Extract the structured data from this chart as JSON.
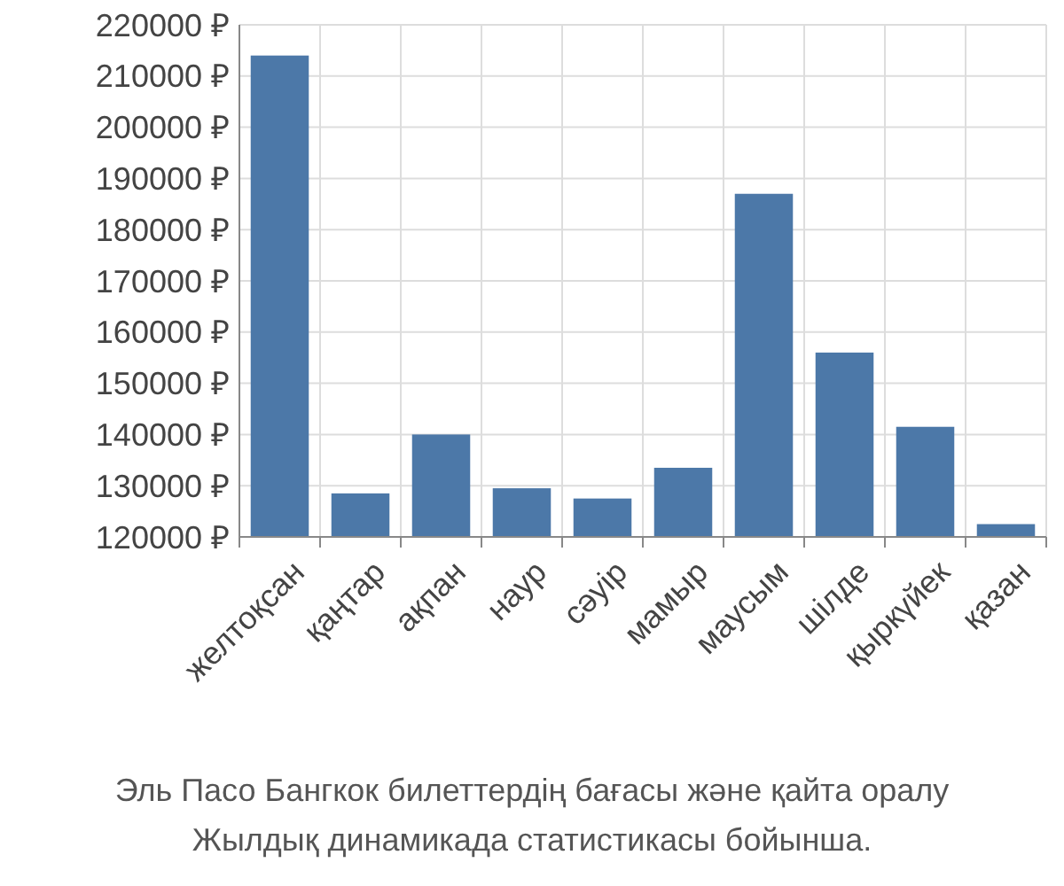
{
  "chart_data": {
    "type": "bar",
    "categories": [
      "желтоқсан",
      "қаңтар",
      "ақпан",
      "наур",
      "сәуір",
      "мамыр",
      "маусым",
      "шілде",
      "қыркүйек",
      "қазан"
    ],
    "values": [
      214000,
      128500,
      140000,
      129500,
      127500,
      133500,
      187000,
      156000,
      141500,
      122500
    ],
    "color": "#4c78a8",
    "ylim": [
      120000,
      220000
    ],
    "yticks": [
      {
        "value": 120000,
        "label": "120000 ₽"
      },
      {
        "value": 130000,
        "label": "130000 ₽"
      },
      {
        "value": 140000,
        "label": "140000 ₽"
      },
      {
        "value": 150000,
        "label": "150000 ₽"
      },
      {
        "value": 160000,
        "label": "160000 ₽"
      },
      {
        "value": 170000,
        "label": "170000 ₽"
      },
      {
        "value": 180000,
        "label": "180000 ₽"
      },
      {
        "value": 190000,
        "label": "190000 ₽"
      },
      {
        "value": 200000,
        "label": "200000 ₽"
      },
      {
        "value": 210000,
        "label": "210000 ₽"
      },
      {
        "value": 220000,
        "label": "220000 ₽"
      }
    ],
    "grid": true,
    "annotations": [
      "Эль Пасо Бангкок билеттердің бағасы және қайта оралу",
      "Жылдық динамикада статистикасы бойынша."
    ]
  }
}
